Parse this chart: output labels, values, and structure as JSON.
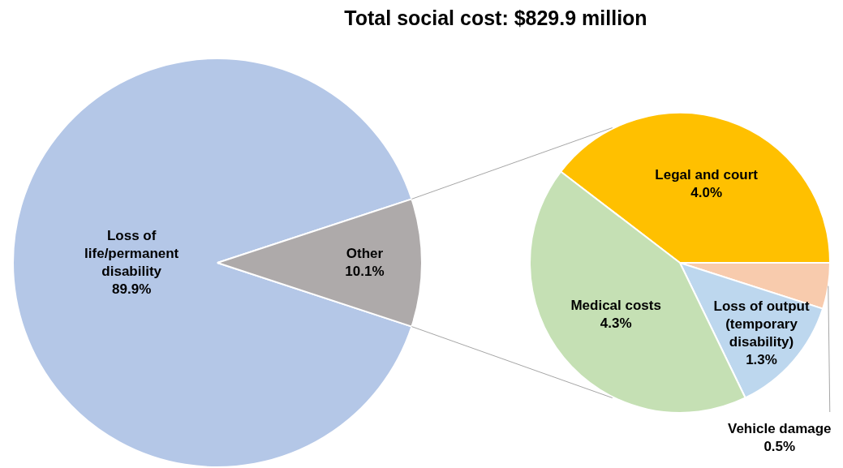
{
  "chart_data": [
    {
      "type": "pie",
      "title": "Total social cost: $829.9 million",
      "categories": [
        "Loss of life/permanent disability",
        "Other"
      ],
      "values": [
        89.9,
        10.1
      ],
      "colors": [
        "#b4c7e7",
        "#aeaaaa"
      ],
      "value_labels": [
        "89.9%",
        "10.1%"
      ],
      "legend": false
    },
    {
      "type": "pie",
      "categories": [
        "Legal and court",
        "Vehicle damage",
        "Loss of output (temporary disability)",
        "Medical costs"
      ],
      "values": [
        4.0,
        0.5,
        1.3,
        4.3
      ],
      "colors": [
        "#ffc000",
        "#f8cbad",
        "#bdd7ee",
        "#c5e0b4"
      ],
      "value_labels": [
        "4.0%",
        "0.5%",
        "1.3%",
        "4.3%"
      ],
      "legend": false
    }
  ]
}
